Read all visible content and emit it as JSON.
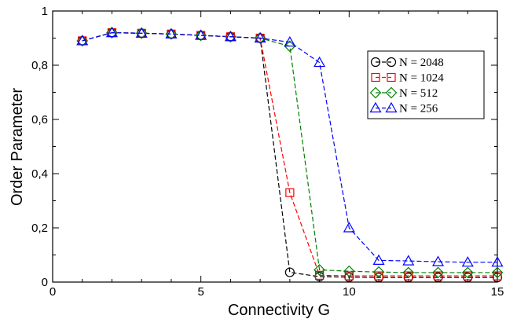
{
  "chart_data": {
    "type": "line",
    "title": "",
    "xlabel": "Connectivity G",
    "ylabel": "Order Parameter",
    "xlim": [
      0,
      15
    ],
    "ylim": [
      0,
      1
    ],
    "xticks": [
      0,
      5,
      10,
      15
    ],
    "xtick_labels": [
      "0",
      "5",
      "10",
      "15"
    ],
    "yticks": [
      0,
      0.2,
      0.4,
      0.6,
      0.8,
      1
    ],
    "ytick_labels": [
      "0",
      "0,2",
      "0,4",
      "0,6",
      "0,8",
      "1"
    ],
    "grid": false,
    "legend_position": "top-right",
    "series": [
      {
        "name": "N = 2048",
        "color": "#000000",
        "marker": "circle",
        "line_style": "dashed",
        "x": [
          1,
          2,
          3,
          4,
          5,
          6,
          7,
          8,
          9,
          10,
          11,
          12,
          13,
          14,
          15
        ],
        "y": [
          0.89,
          0.92,
          0.918,
          0.915,
          0.91,
          0.905,
          0.9,
          0.036,
          0.02,
          0.018,
          0.017,
          0.017,
          0.017,
          0.017,
          0.017
        ]
      },
      {
        "name": "N = 1024",
        "color": "#ff0000",
        "marker": "square",
        "line_style": "dashed",
        "x": [
          1,
          2,
          3,
          4,
          5,
          6,
          7,
          8,
          9,
          10,
          11,
          12,
          13,
          14,
          15
        ],
        "y": [
          0.89,
          0.92,
          0.918,
          0.915,
          0.91,
          0.905,
          0.9,
          0.33,
          0.025,
          0.023,
          0.023,
          0.023,
          0.023,
          0.023,
          0.023
        ]
      },
      {
        "name": "N = 512",
        "color": "#008000",
        "marker": "diamond",
        "line_style": "dashed",
        "x": [
          1,
          2,
          3,
          4,
          5,
          6,
          7,
          8,
          9,
          10,
          11,
          12,
          13,
          14,
          15
        ],
        "y": [
          0.89,
          0.92,
          0.918,
          0.915,
          0.91,
          0.905,
          0.9,
          0.87,
          0.045,
          0.04,
          0.037,
          0.035,
          0.035,
          0.035,
          0.035
        ]
      },
      {
        "name": "N = 256",
        "color": "#0000ff",
        "marker": "triangle",
        "line_style": "dashed",
        "x": [
          1,
          2,
          3,
          4,
          5,
          6,
          7,
          8,
          9,
          10,
          11,
          12,
          13,
          14,
          15
        ],
        "y": [
          0.89,
          0.92,
          0.918,
          0.915,
          0.91,
          0.905,
          0.9,
          0.885,
          0.81,
          0.2,
          0.08,
          0.078,
          0.075,
          0.073,
          0.073
        ]
      }
    ]
  }
}
